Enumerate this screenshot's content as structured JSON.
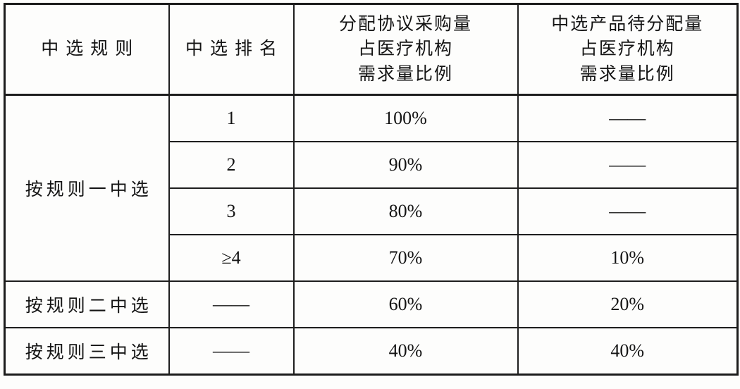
{
  "table": {
    "headers": {
      "rule": "中选规则",
      "rank": "中选排名",
      "agreement": "分配协议采购量\n占医疗机构\n需求量比例",
      "pending": "中选产品待分配量\n占医疗机构\n需求量比例"
    },
    "rows": [
      {
        "rule": "按规则一中选",
        "rank": "1",
        "agreement": "100%",
        "pending": "——"
      },
      {
        "rank": "2",
        "agreement": "90%",
        "pending": "——"
      },
      {
        "rank": "3",
        "agreement": "80%",
        "pending": "——"
      },
      {
        "rank": "≥4",
        "agreement": "70%",
        "pending": "10%"
      },
      {
        "rule": "按规则二中选",
        "rank": "——",
        "agreement": "60%",
        "pending": "20%"
      },
      {
        "rule": "按规则三中选",
        "rank": "——",
        "agreement": "40%",
        "pending": "40%"
      }
    ]
  }
}
